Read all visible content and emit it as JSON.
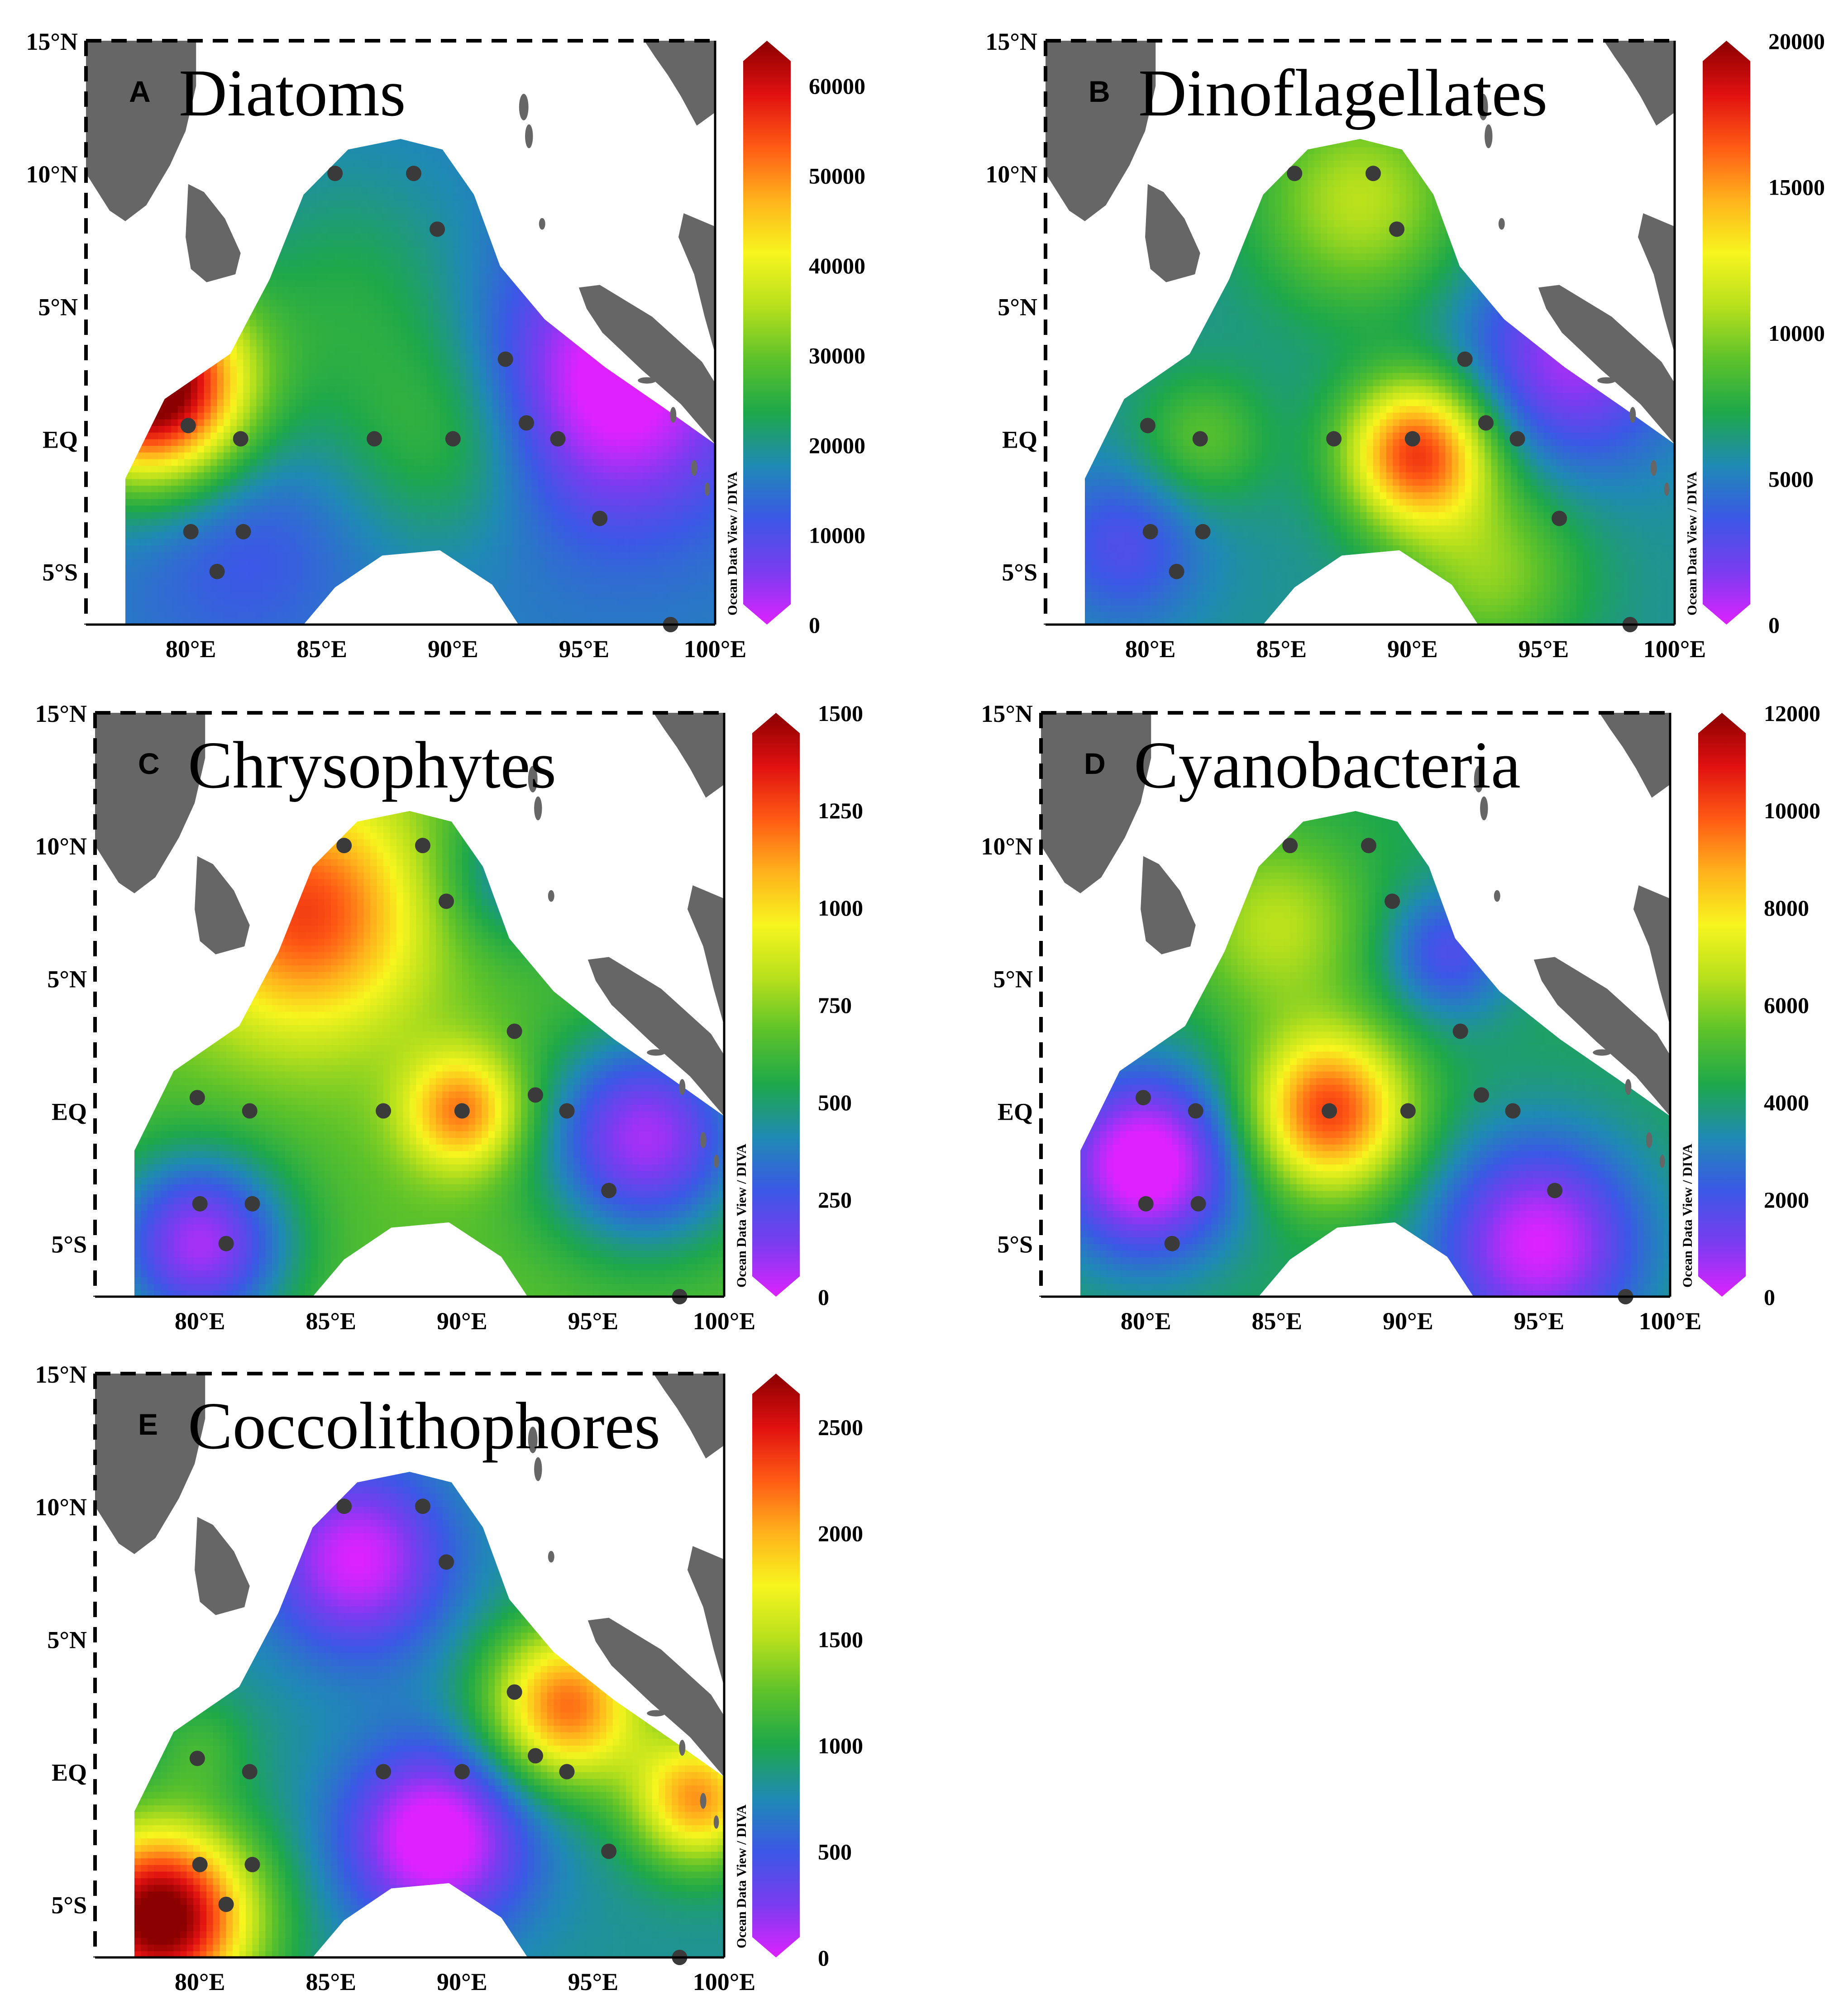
{
  "figure": {
    "credit": "Ocean Data View / DIVA",
    "lat_labels": [
      "15°N",
      "10°N",
      "5°N",
      "EQ",
      "5°S"
    ],
    "lat_values": [
      15,
      10,
      5,
      0,
      -5
    ],
    "lon_labels": [
      "80°E",
      "85°E",
      "90°E",
      "95°E",
      "100°E"
    ],
    "lon_values": [
      80,
      85,
      90,
      95,
      100
    ],
    "lon_range": [
      76,
      100
    ],
    "lat_range": [
      -7,
      15
    ],
    "colors": {
      "land": "#666666",
      "station": "#3a3a3a",
      "frame": "#000000",
      "water": "#ffffff"
    },
    "colormap": [
      "#dd22ff",
      "#7a3cf0",
      "#3b58e6",
      "#1f8ab4",
      "#1ea84a",
      "#5cc22a",
      "#b7e01c",
      "#f7f51e",
      "#ffb21c",
      "#ff5a14",
      "#e01010",
      "#8b0000"
    ],
    "stations": [
      {
        "lon": 85.5,
        "lat": 10
      },
      {
        "lon": 88.5,
        "lat": 10
      },
      {
        "lon": 89.4,
        "lat": 7.9
      },
      {
        "lon": 92,
        "lat": 3
      },
      {
        "lon": 79.9,
        "lat": 0.5
      },
      {
        "lon": 81.9,
        "lat": 0
      },
      {
        "lon": 87,
        "lat": 0
      },
      {
        "lon": 90,
        "lat": 0
      },
      {
        "lon": 92.8,
        "lat": 0.6
      },
      {
        "lon": 94,
        "lat": 0
      },
      {
        "lon": 95.6,
        "lat": -3
      },
      {
        "lon": 80,
        "lat": -3.5
      },
      {
        "lon": 82,
        "lat": -3.5
      },
      {
        "lon": 81,
        "lat": -5
      },
      {
        "lon": 98.3,
        "lat": -7
      }
    ]
  },
  "panels": [
    {
      "letter": "A",
      "title": "Diatoms",
      "colorbar_ticks": [
        "0",
        "10000",
        "20000",
        "30000",
        "40000",
        "50000",
        "60000"
      ],
      "colorbar_values": [
        0,
        10000,
        20000,
        30000,
        40000,
        50000,
        60000
      ],
      "colorbar_max": 65000,
      "field": {
        "base": 0.25,
        "blobs": [
          {
            "lon": 78.5,
            "lat": 2,
            "amp": 0.85,
            "r": 3.5
          },
          {
            "lon": 86,
            "lat": 5,
            "amp": 0.12,
            "r": 5
          },
          {
            "lon": 90,
            "lat": 0,
            "amp": 0.15,
            "r": 4
          },
          {
            "lon": 96,
            "lat": 2,
            "amp": -0.3,
            "r": 5
          },
          {
            "lon": 82,
            "lat": -4,
            "amp": -0.08,
            "r": 4
          }
        ]
      }
    },
    {
      "letter": "B",
      "title": "Dinoflagellates",
      "colorbar_ticks": [
        "0",
        "5000",
        "10000",
        "15000",
        "20000"
      ],
      "colorbar_values": [
        0,
        5000,
        10000,
        15000,
        20000
      ],
      "colorbar_max": 20000,
      "field": {
        "base": 0.3,
        "blobs": [
          {
            "lon": 90.2,
            "lat": -0.5,
            "amp": 0.55,
            "r": 2.8
          },
          {
            "lon": 88,
            "lat": 9,
            "amp": 0.25,
            "r": 4
          },
          {
            "lon": 82,
            "lat": 0,
            "amp": 0.15,
            "r": 2.5
          },
          {
            "lon": 93,
            "lat": -5,
            "amp": 0.2,
            "r": 3.5
          },
          {
            "lon": 96,
            "lat": 3,
            "amp": -0.25,
            "r": 4
          },
          {
            "lon": 79,
            "lat": -4,
            "amp": -0.15,
            "r": 3
          }
        ]
      }
    },
    {
      "letter": "C",
      "title": "Chrysophytes",
      "colorbar_ticks": [
        "0",
        "250",
        "500",
        "750",
        "1000",
        "1250",
        "1500"
      ],
      "colorbar_values": [
        0,
        250,
        500,
        750,
        1000,
        1250,
        1500
      ],
      "colorbar_max": 1500,
      "field": {
        "base": 0.45,
        "blobs": [
          {
            "lon": 84,
            "lat": 7.5,
            "amp": 0.4,
            "r": 4.5
          },
          {
            "lon": 90,
            "lat": 0,
            "amp": 0.35,
            "r": 2.2
          },
          {
            "lon": 97,
            "lat": -1,
            "amp": -0.4,
            "r": 4
          },
          {
            "lon": 80,
            "lat": -5,
            "amp": -0.4,
            "r": 3.5
          },
          {
            "lon": 92,
            "lat": 9,
            "amp": -0.2,
            "r": 3
          }
        ]
      }
    },
    {
      "letter": "D",
      "title": "Cyanobacteria",
      "colorbar_ticks": [
        "0",
        "2000",
        "4000",
        "6000",
        "8000",
        "10000",
        "12000"
      ],
      "colorbar_values": [
        0,
        2000,
        4000,
        6000,
        8000,
        10000,
        12000
      ],
      "colorbar_max": 12000,
      "field": {
        "base": 0.35,
        "blobs": [
          {
            "lon": 87,
            "lat": 0,
            "amp": 0.5,
            "r": 3
          },
          {
            "lon": 85,
            "lat": 7,
            "amp": 0.2,
            "r": 3.5
          },
          {
            "lon": 80,
            "lat": -2,
            "amp": -0.4,
            "r": 3.5
          },
          {
            "lon": 91.5,
            "lat": 6,
            "amp": -0.2,
            "r": 2.5
          },
          {
            "lon": 95,
            "lat": -5,
            "amp": -0.35,
            "r": 4
          }
        ]
      }
    },
    {
      "letter": "E",
      "title": "Coccolithophores",
      "colorbar_ticks": [
        "0",
        "500",
        "1000",
        "1500",
        "2000",
        "2500"
      ],
      "colorbar_values": [
        0,
        500,
        1000,
        1500,
        2000,
        2500
      ],
      "colorbar_max": 2750,
      "field": {
        "base": 0.3,
        "blobs": [
          {
            "lon": 78.5,
            "lat": -5.5,
            "amp": 0.75,
            "r": 3.5
          },
          {
            "lon": 94,
            "lat": 2.5,
            "amp": 0.5,
            "r": 3
          },
          {
            "lon": 99,
            "lat": -1,
            "amp": 0.45,
            "r": 2.5
          },
          {
            "lon": 86,
            "lat": 8,
            "amp": -0.3,
            "r": 3.5
          },
          {
            "lon": 89,
            "lat": -2.5,
            "amp": -0.35,
            "r": 3.5
          },
          {
            "lon": 80,
            "lat": 1,
            "amp": 0.1,
            "r": 2
          }
        ]
      }
    }
  ]
}
